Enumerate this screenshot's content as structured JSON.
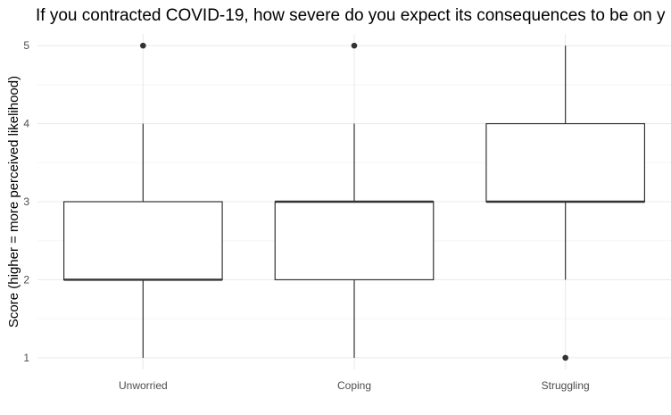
{
  "chart_data": {
    "type": "boxplot",
    "title": "If you contracted COVID-19, how severe do you expect its consequences to be on y",
    "xlabel": "",
    "ylabel": "Score (higher = more perceived likelihood)",
    "categories": [
      "Unworried",
      "Coping",
      "Struggling"
    ],
    "y_ticks": [
      "1",
      "2",
      "3",
      "4",
      "5"
    ],
    "ylim": [
      0.85,
      5.15
    ],
    "grid": true,
    "legend": "none",
    "boxes": [
      {
        "category": "Unworried",
        "whisker_low": 1,
        "q1": 2,
        "median": 2,
        "q3": 3,
        "whisker_high": 4,
        "outliers": [
          5
        ]
      },
      {
        "category": "Coping",
        "whisker_low": 1,
        "q1": 2,
        "median": 3,
        "q3": 3,
        "whisker_high": 4,
        "outliers": [
          5
        ]
      },
      {
        "category": "Struggling",
        "whisker_low": 2,
        "q1": 3,
        "median": 3,
        "q3": 4,
        "whisker_high": 5,
        "outliers": [
          1
        ]
      }
    ],
    "colors": {
      "box_stroke": "#333333",
      "box_fill": "#ffffff",
      "grid_major": "#ebebeb",
      "grid_minor": "#f5f5f5",
      "tick_text": "#4d4d4d"
    }
  }
}
